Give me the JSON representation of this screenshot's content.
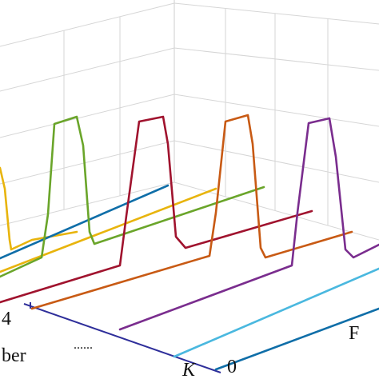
{
  "chart_data": {
    "type": "line",
    "projection": "3d-waterfall",
    "grid": true,
    "trace_labels": [
      "4",
      "K",
      "0"
    ],
    "axis_label_fragments": [
      "ber",
      "F"
    ],
    "ellipsis": "......",
    "series": [
      {
        "color": "#e8b40c",
        "pulse": true
      },
      {
        "color": "#0f6ea8",
        "pulse": false
      },
      {
        "color": "#e8b40c",
        "pulse": false
      },
      {
        "color": "#6aa52a",
        "pulse": true
      },
      {
        "color": "#a0132e",
        "pulse": true
      },
      {
        "color": "#c85a14",
        "pulse": true
      },
      {
        "color": "#7a2d8e",
        "pulse": true
      },
      {
        "color": "#4ab8df",
        "pulse": false
      },
      {
        "color": "#0f6ea8",
        "pulse": false
      },
      {
        "color": "#2e2e9a",
        "pulse": false
      }
    ]
  }
}
